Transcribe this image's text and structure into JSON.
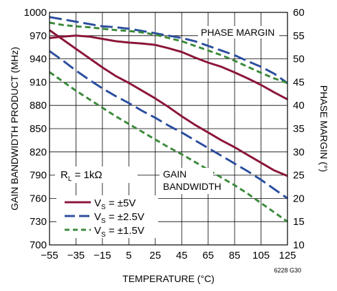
{
  "chart_data": {
    "type": "line",
    "xlabel": "TEMPERATURE (°C)",
    "ylabel_left": "GAIN BANDWIDTH PRODUCT (MHz)",
    "ylabel_right": "PHASE MARGIN (°)",
    "xlim": [
      -55,
      125
    ],
    "ylim_left": [
      700,
      1000
    ],
    "ylim_right": [
      10,
      60
    ],
    "x_ticks": [
      "−55",
      "−35",
      "−15",
      "5",
      "25",
      "45",
      "65",
      "85",
      "105",
      "125"
    ],
    "y_left_ticks": [
      "700",
      "730",
      "760",
      "790",
      "820",
      "850",
      "880",
      "910",
      "940",
      "970",
      "1000"
    ],
    "y_right_ticks": [
      "10",
      "15",
      "20",
      "25",
      "30",
      "35",
      "40",
      "45",
      "50",
      "55",
      "60"
    ],
    "grid": true,
    "annotations": {
      "phase_margin": "PHASE MARGIN",
      "gain_bandwidth_line1": "GAIN",
      "gain_bandwidth_line2": "BANDWIDTH",
      "rl_prefix": "R",
      "rl_sub": "L",
      "rl_suffix": " = 1kΩ",
      "figure_code": "6228 G30"
    },
    "series": [
      {
        "name": "VS = ±5V",
        "legend_prefix": "V",
        "legend_sub": "S",
        "legend_suffix": " = ±5V",
        "color": "#8B1538",
        "dash": "solid",
        "gain_bandwidth": {
          "x": [
            -55,
            -45,
            -35,
            -25,
            -15,
            -5,
            5,
            15,
            25,
            35,
            45,
            55,
            65,
            75,
            85,
            95,
            105,
            115,
            125
          ],
          "y": [
            977,
            965,
            953,
            941,
            929,
            918,
            909,
            899,
            889,
            878,
            866,
            855,
            845,
            835,
            826,
            816,
            806,
            796,
            789
          ]
        },
        "phase_margin": {
          "x": [
            -55,
            -45,
            -35,
            -25,
            -15,
            -5,
            5,
            15,
            25,
            35,
            45,
            55,
            65,
            75,
            85,
            95,
            105,
            115,
            125
          ],
          "y": [
            54.5,
            54.8,
            55.0,
            54.8,
            54.3,
            53.8,
            53.5,
            53.3,
            53.0,
            52.3,
            51.5,
            50.3,
            49.2,
            48.3,
            47.1,
            45.8,
            44.4,
            42.8,
            41.3
          ]
        }
      },
      {
        "name": "VS = ±2.5V",
        "legend_prefix": "V",
        "legend_sub": "S",
        "legend_suffix": " = ±2.5V",
        "color": "#2B4E9E",
        "dash": "long",
        "gain_bandwidth": {
          "x": [
            -55,
            -45,
            -35,
            -25,
            -15,
            -5,
            5,
            15,
            25,
            35,
            45,
            55,
            65,
            75,
            85,
            95,
            105,
            115,
            125
          ],
          "y": [
            950,
            938,
            925,
            913,
            902,
            892,
            883,
            873,
            864,
            854,
            845,
            835,
            825,
            815,
            805,
            795,
            784,
            772,
            760
          ]
        },
        "phase_margin": {
          "x": [
            -55,
            -45,
            -35,
            -25,
            -15,
            -5,
            5,
            15,
            25,
            35,
            45,
            55,
            65,
            75,
            85,
            95,
            105,
            115,
            125
          ],
          "y": [
            59.0,
            58.5,
            58.0,
            57.5,
            57.0,
            56.8,
            56.5,
            56.0,
            55.5,
            55.0,
            54.5,
            53.8,
            52.8,
            51.8,
            50.8,
            49.5,
            48.3,
            46.8,
            44.8
          ]
        }
      },
      {
        "name": "VS = ±1.5V",
        "legend_prefix": "V",
        "legend_sub": "S",
        "legend_suffix": " = ±1.5V",
        "color": "#3A8A3A",
        "dash": "short",
        "gain_bandwidth": {
          "x": [
            -55,
            -45,
            -35,
            -25,
            -15,
            -5,
            5,
            15,
            25,
            35,
            45,
            55,
            65,
            75,
            85,
            95,
            105,
            115,
            125
          ],
          "y": [
            923,
            911,
            899,
            888,
            877,
            866,
            856,
            846,
            836,
            826,
            817,
            807,
            797,
            787,
            777,
            766,
            754,
            742,
            730
          ]
        },
        "phase_margin": {
          "x": [
            -55,
            -45,
            -35,
            -25,
            -15,
            -5,
            5,
            15,
            25,
            35,
            45,
            55,
            65,
            75,
            85,
            95,
            105,
            115,
            125
          ],
          "y": [
            57.8,
            57.3,
            57.0,
            56.8,
            56.5,
            56.2,
            56.0,
            55.7,
            55.2,
            54.5,
            53.8,
            52.8,
            51.8,
            50.8,
            49.6,
            48.3,
            47.0,
            45.8,
            44.8
          ]
        }
      }
    ]
  }
}
